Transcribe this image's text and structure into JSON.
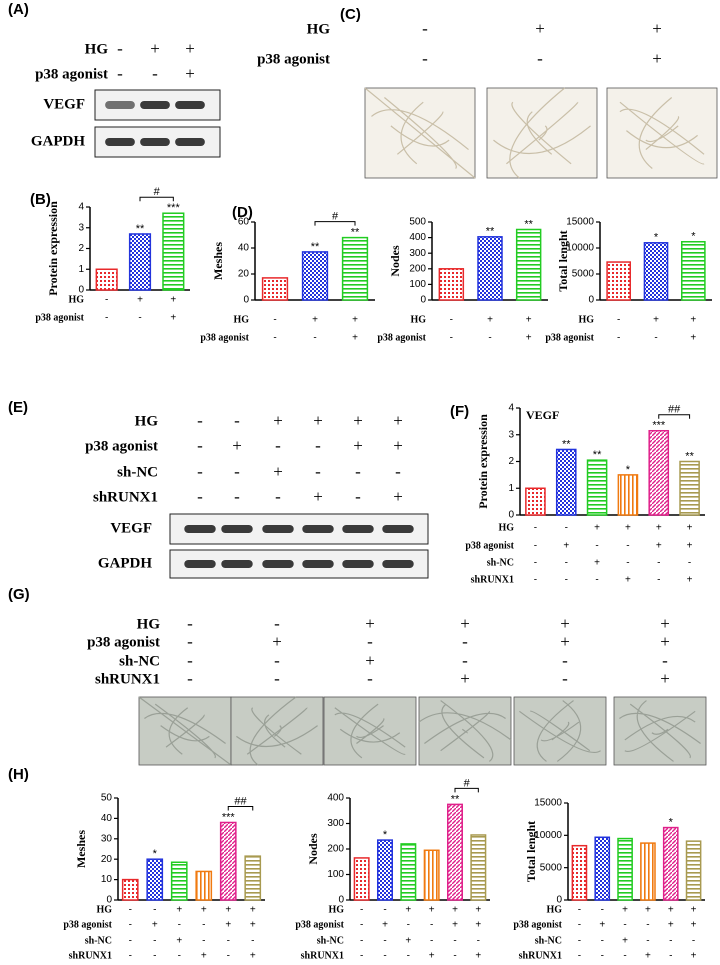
{
  "blots": [
    {
      "label": "(A)",
      "conditions": [
        {
          "name": "HG",
          "signs": [
            "-",
            "+",
            "+"
          ]
        },
        {
          "name": "p38 agonist",
          "signs": [
            "-",
            "-",
            "+"
          ]
        }
      ],
      "bands": [
        "VEGF",
        "GAPDH"
      ]
    },
    {
      "label": "(E)",
      "conditions": [
        {
          "name": "HG",
          "signs": [
            "-",
            "-",
            "+",
            "+",
            "+",
            "+"
          ]
        },
        {
          "name": "p38 agonist",
          "signs": [
            "-",
            "+",
            "-",
            "-",
            "+",
            "+"
          ]
        },
        {
          "name": "sh-NC",
          "signs": [
            "-",
            "-",
            "+",
            "-",
            "-",
            "-"
          ]
        },
        {
          "name": "shRUNX1",
          "signs": [
            "-",
            "-",
            "-",
            "+",
            "-",
            "+"
          ]
        }
      ],
      "bands": [
        "VEGF",
        "GAPDH"
      ]
    }
  ],
  "micrographs": [
    {
      "label": "(C)",
      "conditions": [
        {
          "name": "HG",
          "signs": [
            "-",
            "+",
            "+"
          ]
        },
        {
          "name": "p38 agonist",
          "signs": [
            "-",
            "-",
            "+"
          ]
        }
      ]
    },
    {
      "label": "(G)",
      "conditions": [
        {
          "name": "HG",
          "signs": [
            "-",
            "-",
            "+",
            "+",
            "+",
            "+"
          ]
        },
        {
          "name": "p38 agonist",
          "signs": [
            "-",
            "+",
            "-",
            "-",
            "+",
            "+"
          ]
        },
        {
          "name": "sh-NC",
          "signs": [
            "-",
            "-",
            "+",
            "-",
            "-",
            "-"
          ]
        },
        {
          "name": "shRUNX1",
          "signs": [
            "-",
            "-",
            "-",
            "+",
            "-",
            "+"
          ]
        }
      ]
    }
  ],
  "chart_data": [
    {
      "type": "bar",
      "label": "(B)",
      "ylabel": "Protein expression",
      "values": [
        1.0,
        2.7,
        3.7
      ],
      "colors": [
        "#e8292b",
        "#2233dd",
        "#22cc22"
      ],
      "ylim": [
        0,
        4
      ],
      "yticks": [
        0,
        1,
        2,
        3,
        4
      ],
      "stars": [
        null,
        "**",
        "***"
      ],
      "comparisons": [
        {
          "between": [
            1,
            2
          ],
          "text": "#"
        }
      ],
      "conditions": [
        {
          "name": "HG",
          "signs": [
            "-",
            "+",
            "+"
          ]
        },
        {
          "name": "p38 agonist",
          "signs": [
            "-",
            "-",
            "+"
          ]
        }
      ]
    },
    {
      "type": "bar",
      "label": "(D)",
      "ylabel": "Meshes",
      "values": [
        17,
        37,
        48
      ],
      "colors": [
        "#e8292b",
        "#2233dd",
        "#22cc22"
      ],
      "ylim": [
        0,
        60
      ],
      "yticks": [
        0,
        20,
        40,
        60
      ],
      "stars": [
        null,
        "**",
        "**"
      ],
      "comparisons": [
        {
          "between": [
            1,
            2
          ],
          "text": "#"
        }
      ],
      "conditions": [
        {
          "name": "HG",
          "signs": [
            "-",
            "+",
            "+"
          ]
        },
        {
          "name": "p38 agonist",
          "signs": [
            "-",
            "-",
            "+"
          ]
        }
      ]
    },
    {
      "type": "bar",
      "ylabel": "Nodes",
      "values": [
        200,
        405,
        452
      ],
      "colors": [
        "#e8292b",
        "#2233dd",
        "#22cc22"
      ],
      "ylim": [
        0,
        500
      ],
      "yticks": [
        0,
        100,
        200,
        300,
        400,
        500
      ],
      "stars": [
        null,
        "**",
        "**"
      ],
      "conditions": [
        {
          "name": "HG",
          "signs": [
            "-",
            "+",
            "+"
          ]
        },
        {
          "name": "p38 agonist",
          "signs": [
            "-",
            "-",
            "+"
          ]
        }
      ]
    },
    {
      "type": "bar",
      "ylabel": "Total lenght",
      "values": [
        7300,
        11000,
        11200
      ],
      "colors": [
        "#e8292b",
        "#2233dd",
        "#22cc22"
      ],
      "ylim": [
        0,
        15000
      ],
      "yticks": [
        0,
        5000,
        10000,
        15000
      ],
      "stars": [
        null,
        "*",
        "*"
      ],
      "conditions": [
        {
          "name": "HG",
          "signs": [
            "-",
            "+",
            "+"
          ]
        },
        {
          "name": "p38 agonist",
          "signs": [
            "-",
            "-",
            "+"
          ]
        }
      ]
    },
    {
      "type": "bar",
      "label": "(F)",
      "title": "VEGF",
      "ylabel": "Protein expression",
      "values": [
        1.0,
        2.45,
        2.05,
        1.5,
        3.15,
        2.0
      ],
      "colors": [
        "#e8292b",
        "#2233dd",
        "#22cc22",
        "#f07a10",
        "#e0208a",
        "#a89a50"
      ],
      "ylim": [
        0,
        4
      ],
      "yticks": [
        0,
        1,
        2,
        3,
        4
      ],
      "stars": [
        null,
        "**",
        "**",
        "*",
        "***",
        "**"
      ],
      "comparisons": [
        {
          "between": [
            4,
            5
          ],
          "text": "##"
        }
      ],
      "conditions": [
        {
          "name": "HG",
          "signs": [
            "-",
            "-",
            "+",
            "+",
            "+",
            "+"
          ]
        },
        {
          "name": "p38 agonist",
          "signs": [
            "-",
            "+",
            "-",
            "-",
            "+",
            "+"
          ]
        },
        {
          "name": "sh-NC",
          "signs": [
            "-",
            "-",
            "+",
            "-",
            "-",
            "-"
          ]
        },
        {
          "name": "shRUNX1",
          "signs": [
            "-",
            "-",
            "-",
            "+",
            "-",
            "+"
          ]
        }
      ]
    },
    {
      "type": "bar",
      "label": "(H)",
      "ylabel": "Meshes",
      "values": [
        10,
        20,
        18.5,
        14,
        38,
        21.5
      ],
      "colors": [
        "#e8292b",
        "#2233dd",
        "#22cc22",
        "#f07a10",
        "#e0208a",
        "#a89a50"
      ],
      "ylim": [
        0,
        50
      ],
      "yticks": [
        0,
        10,
        20,
        30,
        40,
        50
      ],
      "stars": [
        null,
        "*",
        null,
        null,
        "***",
        null
      ],
      "comparisons": [
        {
          "between": [
            4,
            5
          ],
          "text": "##"
        }
      ],
      "conditions": [
        {
          "name": "HG",
          "signs": [
            "-",
            "-",
            "+",
            "+",
            "+",
            "+"
          ]
        },
        {
          "name": "p38 agonist",
          "signs": [
            "-",
            "+",
            "-",
            "-",
            "+",
            "+"
          ]
        },
        {
          "name": "sh-NC",
          "signs": [
            "-",
            "-",
            "+",
            "-",
            "-",
            "-"
          ]
        },
        {
          "name": "shRUNX1",
          "signs": [
            "-",
            "-",
            "-",
            "+",
            "-",
            "+"
          ]
        }
      ]
    },
    {
      "type": "bar",
      "ylabel": "Nodes",
      "values": [
        165,
        235,
        220,
        195,
        375,
        255
      ],
      "colors": [
        "#e8292b",
        "#2233dd",
        "#22cc22",
        "#f07a10",
        "#e0208a",
        "#a89a50"
      ],
      "ylim": [
        0,
        400
      ],
      "yticks": [
        0,
        100,
        200,
        300,
        400
      ],
      "stars": [
        null,
        "*",
        null,
        null,
        "**",
        null
      ],
      "comparisons": [
        {
          "between": [
            4,
            5
          ],
          "text": "#"
        }
      ],
      "conditions": [
        {
          "name": "HG",
          "signs": [
            "-",
            "-",
            "+",
            "+",
            "+",
            "+"
          ]
        },
        {
          "name": "p38 agonist",
          "signs": [
            "-",
            "+",
            "-",
            "-",
            "+",
            "+"
          ]
        },
        {
          "name": "sh-NC",
          "signs": [
            "-",
            "-",
            "+",
            "-",
            "-",
            "-"
          ]
        },
        {
          "name": "shRUNX1",
          "signs": [
            "-",
            "-",
            "-",
            "+",
            "-",
            "+"
          ]
        }
      ]
    },
    {
      "type": "bar",
      "ylabel": "Total lenght",
      "values": [
        8400,
        9700,
        9500,
        8800,
        11200,
        9100
      ],
      "colors": [
        "#e8292b",
        "#2233dd",
        "#22cc22",
        "#f07a10",
        "#e0208a",
        "#a89a50"
      ],
      "ylim": [
        0,
        15000
      ],
      "yticks": [
        0,
        5000,
        10000,
        15000
      ],
      "stars": [
        null,
        null,
        null,
        null,
        "*",
        null
      ],
      "conditions": [
        {
          "name": "HG",
          "signs": [
            "-",
            "-",
            "+",
            "+",
            "+",
            "+"
          ]
        },
        {
          "name": "p38 agonist",
          "signs": [
            "-",
            "+",
            "-",
            "-",
            "+",
            "+"
          ]
        },
        {
          "name": "sh-NC",
          "signs": [
            "-",
            "-",
            "+",
            "-",
            "-",
            "-"
          ]
        },
        {
          "name": "shRUNX1",
          "signs": [
            "-",
            "-",
            "-",
            "+",
            "-",
            "+"
          ]
        }
      ]
    }
  ]
}
